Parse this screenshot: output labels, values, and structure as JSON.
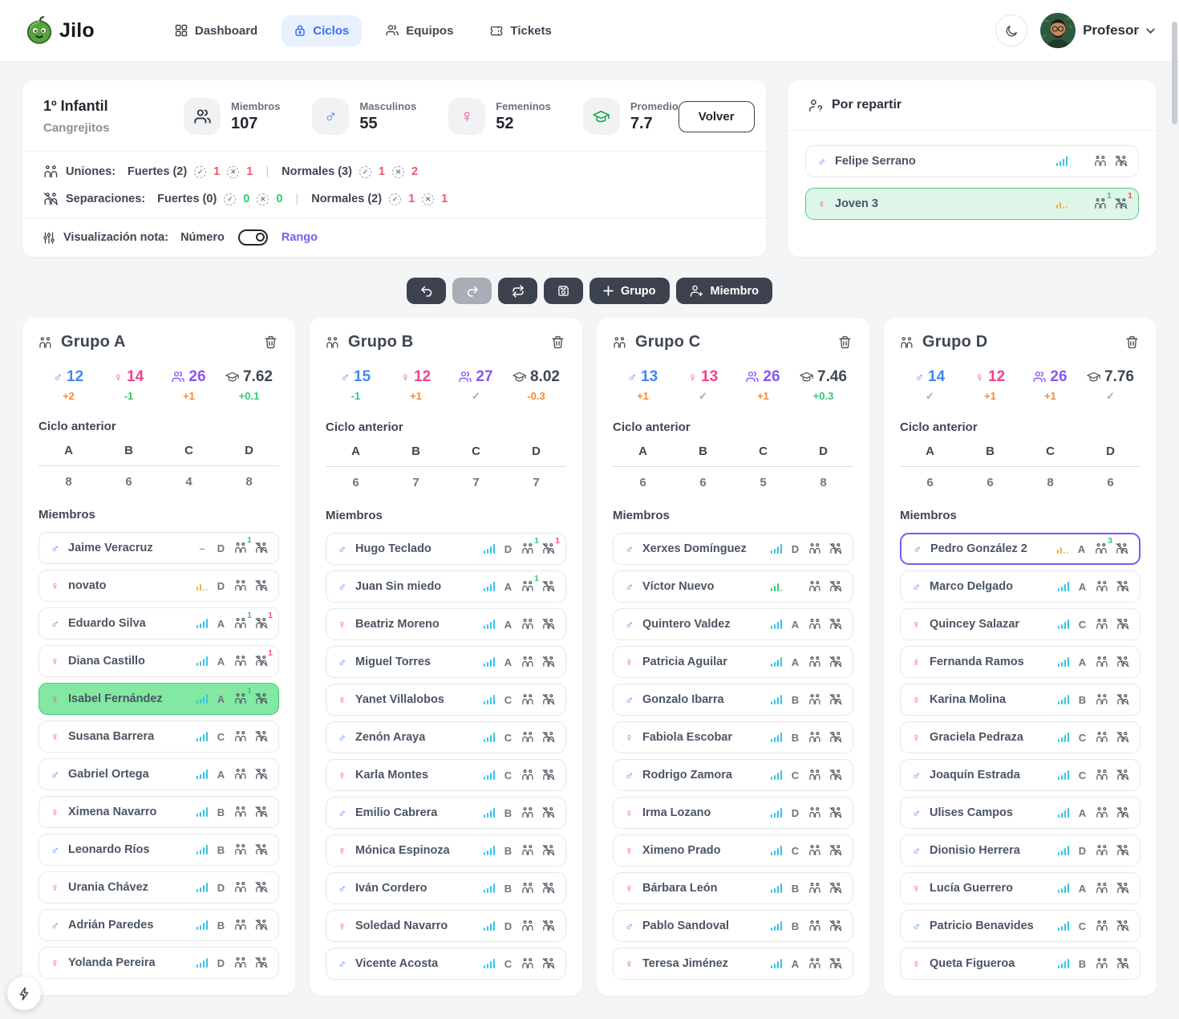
{
  "brand": {
    "name": "Jilo"
  },
  "nav": {
    "items": [
      {
        "label": "Dashboard",
        "icon": "grid-icon",
        "active": false
      },
      {
        "label": "Ciclos",
        "icon": "ciclos-icon",
        "active": true
      },
      {
        "label": "Equipos",
        "icon": "users-icon",
        "active": false
      },
      {
        "label": "Tickets",
        "icon": "ticket-icon",
        "active": false
      }
    ],
    "profile_label": "Profesor"
  },
  "header": {
    "title": "1º Infantil",
    "subtitle": "Cangrejitos",
    "stats": [
      {
        "label": "Miembros",
        "value": "107",
        "icon": "members"
      },
      {
        "label": "Masculinos",
        "value": "55",
        "icon": "male"
      },
      {
        "label": "Femeninos",
        "value": "52",
        "icon": "female"
      },
      {
        "label": "Promedio",
        "value": "7.7",
        "icon": "grade"
      }
    ],
    "back_button": "Volver",
    "uniones": {
      "label": "Uniones:",
      "fuertes_label": "Fuertes (2)",
      "fuertes_check": "1",
      "fuertes_x": "1",
      "fuertes_color": "red",
      "normales_label": "Normales (3)",
      "normales_check": "1",
      "normales_x": "2",
      "normales_color": "red"
    },
    "separaciones": {
      "label": "Separaciones:",
      "fuertes_label": "Fuertes (0)",
      "fuertes_check": "0",
      "fuertes_x": "0",
      "fuertes_color": "green",
      "normales_label": "Normales (2)",
      "normales_check": "1",
      "normales_x": "1",
      "normales_color": "red"
    },
    "visualizacion": {
      "label": "Visualización nota:",
      "option_left": "Número",
      "option_right": "Rango"
    }
  },
  "por_repartir": {
    "title": "Por repartir",
    "members": [
      {
        "name": "Felipe Serrano",
        "gender": "m",
        "chart": "full",
        "prev": "",
        "union_badge": "",
        "sep_badge": "",
        "highlight": ""
      },
      {
        "name": "Joven 3",
        "gender": "f",
        "chart": "yellow",
        "prev": "",
        "union_badge": "1",
        "sep_badge": "1",
        "highlight": "green-light"
      }
    ]
  },
  "toolbar": {
    "grupo_label": "Grupo",
    "miembro_label": "Miembro"
  },
  "groups_shared": {
    "ciclo_anterior_label": "Ciclo anterior",
    "miembros_label": "Miembros",
    "prev_headers": [
      "A",
      "B",
      "C",
      "D"
    ]
  },
  "groups": [
    {
      "title": "Grupo A",
      "stats": [
        {
          "icon": "male",
          "value": "12",
          "color": "blue",
          "delta": "+2",
          "delta_color": "orange"
        },
        {
          "icon": "female",
          "value": "14",
          "color": "pink",
          "delta": "-1",
          "delta_color": "green"
        },
        {
          "icon": "members",
          "value": "26",
          "color": "purple",
          "delta": "+1",
          "delta_color": "orange"
        },
        {
          "icon": "grade",
          "value": "7.62",
          "color": "dark",
          "delta": "+0.1",
          "delta_color": "green"
        }
      ],
      "prev_values": [
        "8",
        "6",
        "4",
        "8"
      ],
      "members": [
        {
          "name": "Jaime Veracruz",
          "gender": "m",
          "chart": "dash",
          "prev": "D",
          "union_badge": "1",
          "sep_badge": "",
          "highlight": ""
        },
        {
          "name": "novato",
          "gender": "f",
          "chart": "yellow",
          "prev": "D",
          "union_badge": "",
          "sep_badge": "",
          "highlight": ""
        },
        {
          "name": "Eduardo Silva",
          "gender": "m",
          "chart": "full",
          "prev": "A",
          "union_badge": "1",
          "sep_badge": "1",
          "highlight": ""
        },
        {
          "name": "Diana Castillo",
          "gender": "f",
          "chart": "full",
          "prev": "A",
          "union_badge": "",
          "sep_badge": "1",
          "highlight": ""
        },
        {
          "name": "Isabel Fernández",
          "gender": "f",
          "chart": "full",
          "prev": "A",
          "union_badge": "1",
          "sep_badge": "",
          "highlight": "green"
        },
        {
          "name": "Susana Barrera",
          "gender": "f",
          "chart": "full",
          "prev": "C",
          "union_badge": "",
          "sep_badge": "",
          "highlight": ""
        },
        {
          "name": "Gabriel Ortega",
          "gender": "m",
          "chart": "full",
          "prev": "A",
          "union_badge": "",
          "sep_badge": "",
          "highlight": ""
        },
        {
          "name": "Ximena Navarro",
          "gender": "f",
          "chart": "full",
          "prev": "B",
          "union_badge": "",
          "sep_badge": "",
          "highlight": ""
        },
        {
          "name": "Leonardo Ríos",
          "gender": "m",
          "chart": "full",
          "prev": "B",
          "union_badge": "",
          "sep_badge": "",
          "highlight": ""
        },
        {
          "name": "Urania Chávez",
          "gender": "f",
          "chart": "full",
          "prev": "D",
          "union_badge": "",
          "sep_badge": "",
          "highlight": ""
        },
        {
          "name": "Adrián Paredes",
          "gender": "m",
          "chart": "full",
          "prev": "B",
          "union_badge": "",
          "sep_badge": "",
          "highlight": ""
        },
        {
          "name": "Yolanda Pereira",
          "gender": "f",
          "chart": "full",
          "prev": "D",
          "union_badge": "",
          "sep_badge": "",
          "highlight": ""
        }
      ]
    },
    {
      "title": "Grupo B",
      "stats": [
        {
          "icon": "male",
          "value": "15",
          "color": "blue",
          "delta": "-1",
          "delta_color": "green"
        },
        {
          "icon": "female",
          "value": "12",
          "color": "pink",
          "delta": "+1",
          "delta_color": "orange"
        },
        {
          "icon": "members",
          "value": "27",
          "color": "purple",
          "delta": "✓",
          "delta_color": "gray"
        },
        {
          "icon": "grade",
          "value": "8.02",
          "color": "dark",
          "delta": "-0.3",
          "delta_color": "orange"
        }
      ],
      "prev_values": [
        "6",
        "7",
        "7",
        "7"
      ],
      "members": [
        {
          "name": "Hugo Teclado",
          "gender": "m",
          "chart": "full",
          "prev": "D",
          "union_badge": "1",
          "sep_badge": "1",
          "highlight": ""
        },
        {
          "name": "Juan Sin miedo",
          "gender": "m",
          "chart": "full",
          "prev": "A",
          "union_badge": "1",
          "sep_badge": "",
          "highlight": ""
        },
        {
          "name": "Beatriz Moreno",
          "gender": "f",
          "chart": "full",
          "prev": "A",
          "union_badge": "",
          "sep_badge": "",
          "highlight": ""
        },
        {
          "name": "Miguel Torres",
          "gender": "m",
          "chart": "full",
          "prev": "A",
          "union_badge": "",
          "sep_badge": "",
          "highlight": ""
        },
        {
          "name": "Yanet Villalobos",
          "gender": "f",
          "chart": "full",
          "prev": "C",
          "union_badge": "",
          "sep_badge": "",
          "highlight": ""
        },
        {
          "name": "Zenón Araya",
          "gender": "m",
          "chart": "full",
          "prev": "C",
          "union_badge": "",
          "sep_badge": "",
          "highlight": ""
        },
        {
          "name": "Karla Montes",
          "gender": "f",
          "chart": "full",
          "prev": "C",
          "union_badge": "",
          "sep_badge": "",
          "highlight": ""
        },
        {
          "name": "Emilio Cabrera",
          "gender": "m",
          "chart": "full",
          "prev": "B",
          "union_badge": "",
          "sep_badge": "",
          "highlight": ""
        },
        {
          "name": "Mónica Espinoza",
          "gender": "f",
          "chart": "full",
          "prev": "B",
          "union_badge": "",
          "sep_badge": "",
          "highlight": ""
        },
        {
          "name": "Iván Cordero",
          "gender": "m",
          "chart": "full",
          "prev": "B",
          "union_badge": "",
          "sep_badge": "",
          "highlight": ""
        },
        {
          "name": "Soledad Navarro",
          "gender": "f",
          "chart": "full",
          "prev": "D",
          "union_badge": "",
          "sep_badge": "",
          "highlight": ""
        },
        {
          "name": "Vicente Acosta",
          "gender": "m",
          "chart": "full",
          "prev": "C",
          "union_badge": "",
          "sep_badge": "",
          "highlight": ""
        }
      ]
    },
    {
      "title": "Grupo C",
      "stats": [
        {
          "icon": "male",
          "value": "13",
          "color": "blue",
          "delta": "+1",
          "delta_color": "orange"
        },
        {
          "icon": "female",
          "value": "13",
          "color": "pink",
          "delta": "✓",
          "delta_color": "gray"
        },
        {
          "icon": "members",
          "value": "26",
          "color": "purple",
          "delta": "+1",
          "delta_color": "orange"
        },
        {
          "icon": "grade",
          "value": "7.46",
          "color": "dark",
          "delta": "+0.3",
          "delta_color": "green"
        }
      ],
      "prev_values": [
        "6",
        "6",
        "5",
        "8"
      ],
      "members": [
        {
          "name": "Xerxes Domínguez",
          "gender": "m",
          "chart": "full",
          "prev": "D",
          "union_badge": "",
          "sep_badge": "",
          "highlight": ""
        },
        {
          "name": "Víctor Nuevo",
          "gender": "m",
          "chart": "green",
          "prev": "",
          "union_badge": "",
          "sep_badge": "",
          "highlight": ""
        },
        {
          "name": "Quintero Valdez",
          "gender": "m",
          "chart": "full",
          "prev": "A",
          "union_badge": "",
          "sep_badge": "",
          "highlight": ""
        },
        {
          "name": "Patricia Aguilar",
          "gender": "f",
          "chart": "full",
          "prev": "A",
          "union_badge": "",
          "sep_badge": "",
          "highlight": ""
        },
        {
          "name": "Gonzalo Ibarra",
          "gender": "m",
          "chart": "full",
          "prev": "B",
          "union_badge": "",
          "sep_badge": "",
          "highlight": ""
        },
        {
          "name": "Fabiola Escobar",
          "gender": "f",
          "chart": "full",
          "prev": "B",
          "union_badge": "",
          "sep_badge": "",
          "highlight": ""
        },
        {
          "name": "Rodrigo Zamora",
          "gender": "m",
          "chart": "full",
          "prev": "C",
          "union_badge": "",
          "sep_badge": "",
          "highlight": ""
        },
        {
          "name": "Irma Lozano",
          "gender": "f",
          "chart": "full",
          "prev": "D",
          "union_badge": "",
          "sep_badge": "",
          "highlight": ""
        },
        {
          "name": "Ximeno Prado",
          "gender": "f",
          "chart": "full",
          "prev": "C",
          "union_badge": "",
          "sep_badge": "",
          "highlight": ""
        },
        {
          "name": "Bárbara León",
          "gender": "f",
          "chart": "full",
          "prev": "B",
          "union_badge": "",
          "sep_badge": "",
          "highlight": ""
        },
        {
          "name": "Pablo Sandoval",
          "gender": "m",
          "chart": "full",
          "prev": "B",
          "union_badge": "",
          "sep_badge": "",
          "highlight": ""
        },
        {
          "name": "Teresa Jiménez",
          "gender": "f",
          "chart": "full",
          "prev": "A",
          "union_badge": "",
          "sep_badge": "",
          "highlight": ""
        }
      ]
    },
    {
      "title": "Grupo D",
      "stats": [
        {
          "icon": "male",
          "value": "14",
          "color": "blue",
          "delta": "✓",
          "delta_color": "gray"
        },
        {
          "icon": "female",
          "value": "12",
          "color": "pink",
          "delta": "+1",
          "delta_color": "orange"
        },
        {
          "icon": "members",
          "value": "26",
          "color": "purple",
          "delta": "+1",
          "delta_color": "orange"
        },
        {
          "icon": "grade",
          "value": "7.76",
          "color": "dark",
          "delta": "✓",
          "delta_color": "gray"
        }
      ],
      "prev_values": [
        "6",
        "6",
        "8",
        "6"
      ],
      "members": [
        {
          "name": "Pedro González 2",
          "gender": "m",
          "chart": "yellow",
          "prev": "A",
          "union_badge": "3",
          "sep_badge": "",
          "highlight": "purple"
        },
        {
          "name": "Marco Delgado",
          "gender": "m",
          "chart": "full",
          "prev": "A",
          "union_badge": "",
          "sep_badge": "",
          "highlight": ""
        },
        {
          "name": "Quincey Salazar",
          "gender": "f",
          "chart": "full",
          "prev": "C",
          "union_badge": "",
          "sep_badge": "",
          "highlight": ""
        },
        {
          "name": "Fernanda Ramos",
          "gender": "f",
          "chart": "full",
          "prev": "A",
          "union_badge": "",
          "sep_badge": "",
          "highlight": ""
        },
        {
          "name": "Karina Molina",
          "gender": "f",
          "chart": "full",
          "prev": "B",
          "union_badge": "",
          "sep_badge": "",
          "highlight": ""
        },
        {
          "name": "Graciela Pedraza",
          "gender": "f",
          "chart": "full",
          "prev": "C",
          "union_badge": "",
          "sep_badge": "",
          "highlight": ""
        },
        {
          "name": "Joaquín Estrada",
          "gender": "m",
          "chart": "full",
          "prev": "C",
          "union_badge": "",
          "sep_badge": "",
          "highlight": ""
        },
        {
          "name": "Ulises Campos",
          "gender": "m",
          "chart": "full",
          "prev": "A",
          "union_badge": "",
          "sep_badge": "",
          "highlight": ""
        },
        {
          "name": "Dionisio Herrera",
          "gender": "m",
          "chart": "full",
          "prev": "D",
          "union_badge": "",
          "sep_badge": "",
          "highlight": ""
        },
        {
          "name": "Lucía Guerrero",
          "gender": "f",
          "chart": "full",
          "prev": "A",
          "union_badge": "",
          "sep_badge": "",
          "highlight": ""
        },
        {
          "name": "Patricio Benavides",
          "gender": "m",
          "chart": "full",
          "prev": "C",
          "union_badge": "",
          "sep_badge": "",
          "highlight": ""
        },
        {
          "name": "Queta Figueroa",
          "gender": "f",
          "chart": "full",
          "prev": "B",
          "union_badge": "",
          "sep_badge": "",
          "highlight": ""
        }
      ]
    }
  ],
  "colors": {
    "male": "#4087f5",
    "female": "#f43f8e",
    "total": "#8855f6",
    "delta_orange": "#f7882f",
    "delta_green": "#2ecb71",
    "red": "#f2566b",
    "accent_blue": "#3a6ef0",
    "accent_purple": "#7b5cf5",
    "highlight_green": "#82e8a2",
    "highlight_green_light": "#ddf6e8",
    "highlight_purple": "#8257f0"
  }
}
